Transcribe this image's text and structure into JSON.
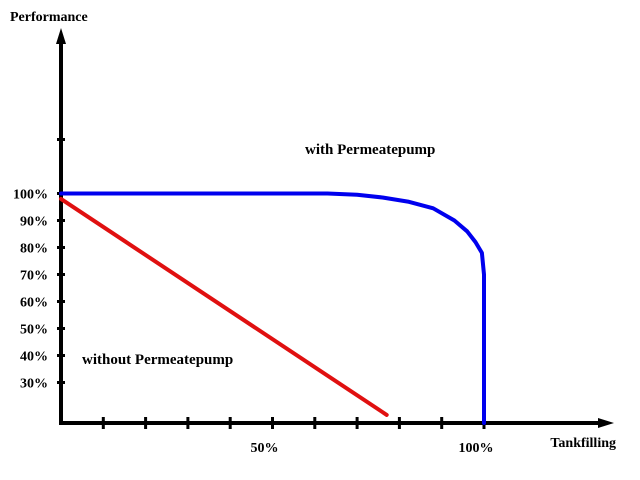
{
  "chart_data": {
    "type": "line",
    "ylabel": "Performance",
    "xlabel": "Tankfilling",
    "xlim": [
      0,
      130
    ],
    "ylim": [
      15,
      145
    ],
    "y_ticks": [
      {
        "value": 30,
        "label": "30%"
      },
      {
        "value": 40,
        "label": "40%"
      },
      {
        "value": 50,
        "label": "50%"
      },
      {
        "value": 60,
        "label": "60%"
      },
      {
        "value": 70,
        "label": "70%"
      },
      {
        "value": 80,
        "label": "80%"
      },
      {
        "value": 90,
        "label": "90%"
      },
      {
        "value": 100,
        "label": "100%"
      },
      {
        "value": 120,
        "label": ""
      }
    ],
    "x_ticks": [
      {
        "value": 10,
        "label": ""
      },
      {
        "value": 20,
        "label": ""
      },
      {
        "value": 30,
        "label": ""
      },
      {
        "value": 40,
        "label": ""
      },
      {
        "value": 50,
        "label": "50%"
      },
      {
        "value": 60,
        "label": ""
      },
      {
        "value": 70,
        "label": ""
      },
      {
        "value": 80,
        "label": ""
      },
      {
        "value": 90,
        "label": ""
      },
      {
        "value": 100,
        "label": "100%"
      }
    ],
    "series": [
      {
        "name": "with Permeatepump",
        "color": "#0000ee",
        "x": [
          0,
          20,
          40,
          63,
          70,
          76,
          82,
          88,
          93,
          96,
          98,
          99.5,
          100,
          100,
          100
        ],
        "y": [
          100,
          100,
          100,
          100,
          99.5,
          98.5,
          97,
          94.5,
          90,
          86,
          82,
          78,
          70,
          40,
          15
        ]
      },
      {
        "name": "without Permeatepump",
        "color": "#e01010",
        "x": [
          0,
          77
        ],
        "y": [
          98,
          18
        ]
      }
    ]
  }
}
